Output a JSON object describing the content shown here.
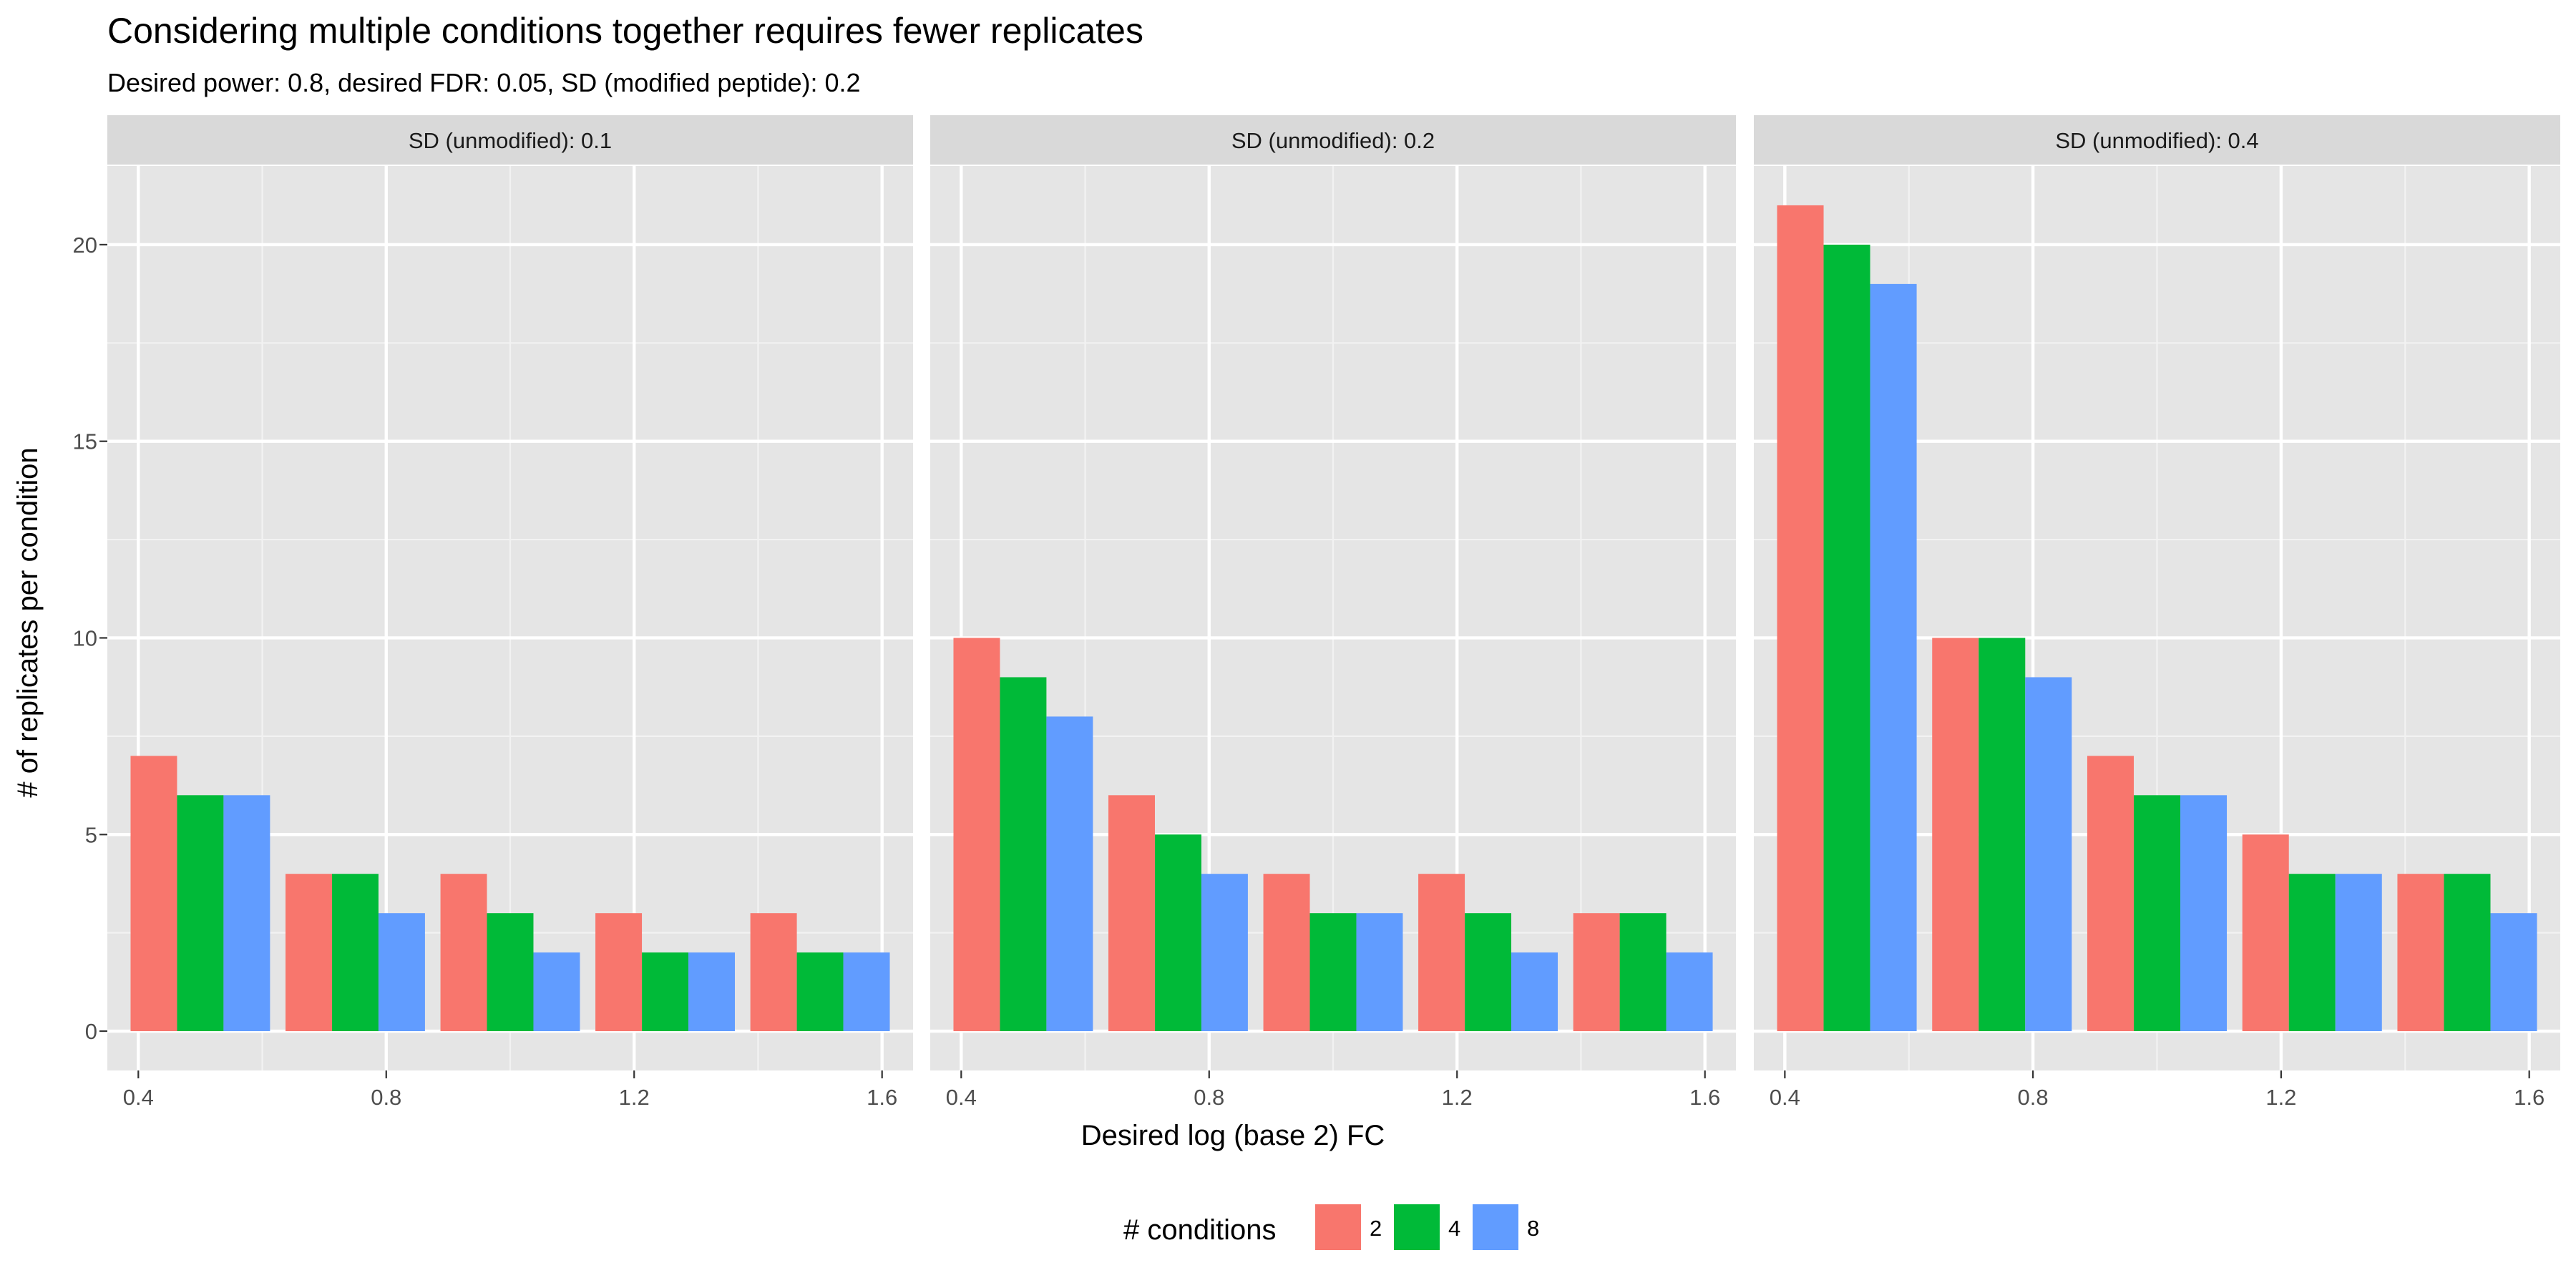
{
  "chart_data": {
    "type": "bar",
    "title": "Considering multiple conditions together requires fewer replicates",
    "subtitle": "Desired power: 0.8, desired FDR: 0.05, SD (modified peptide): 0.2",
    "xlabel": "Desired log (base 2) FC",
    "ylabel": "# of replicates per condition",
    "x_categories": [
      0.5,
      0.75,
      1.0,
      1.25,
      1.5
    ],
    "x_ticks": [
      0.4,
      0.8,
      1.2,
      1.6
    ],
    "x_tick_labels": [
      "0.4",
      "0.8",
      "1.2",
      "1.6"
    ],
    "xlim": [
      0.35,
      1.65
    ],
    "ylim": [
      -1,
      22
    ],
    "y_ticks": [
      0,
      5,
      10,
      15,
      20
    ],
    "y_tick_labels": [
      "0",
      "5",
      "10",
      "15",
      "20"
    ],
    "grid": true,
    "legend": {
      "title": "# conditions",
      "position": "bottom",
      "entries": [
        {
          "label": "2",
          "color": "#F8766D"
        },
        {
          "label": "4",
          "color": "#00BA38"
        },
        {
          "label": "8",
          "color": "#619CFF"
        }
      ]
    },
    "facets": [
      {
        "label": "SD (unmodified): 0.1",
        "series": [
          {
            "name": "2",
            "values": [
              7,
              4,
              4,
              3,
              3
            ]
          },
          {
            "name": "4",
            "values": [
              6,
              4,
              3,
              2,
              2
            ]
          },
          {
            "name": "8",
            "values": [
              6,
              3,
              2,
              2,
              2
            ]
          }
        ]
      },
      {
        "label": "SD (unmodified): 0.2",
        "series": [
          {
            "name": "2",
            "values": [
              10,
              6,
              4,
              4,
              3
            ]
          },
          {
            "name": "4",
            "values": [
              9,
              5,
              3,
              3,
              3
            ]
          },
          {
            "name": "8",
            "values": [
              8,
              4,
              3,
              2,
              2
            ]
          }
        ]
      },
      {
        "label": "SD (unmodified): 0.4",
        "series": [
          {
            "name": "2",
            "values": [
              21,
              10,
              7,
              5,
              4
            ]
          },
          {
            "name": "4",
            "values": [
              20,
              10,
              6,
              4,
              4
            ]
          },
          {
            "name": "8",
            "values": [
              19,
              9,
              6,
              4,
              3
            ]
          }
        ]
      }
    ]
  }
}
